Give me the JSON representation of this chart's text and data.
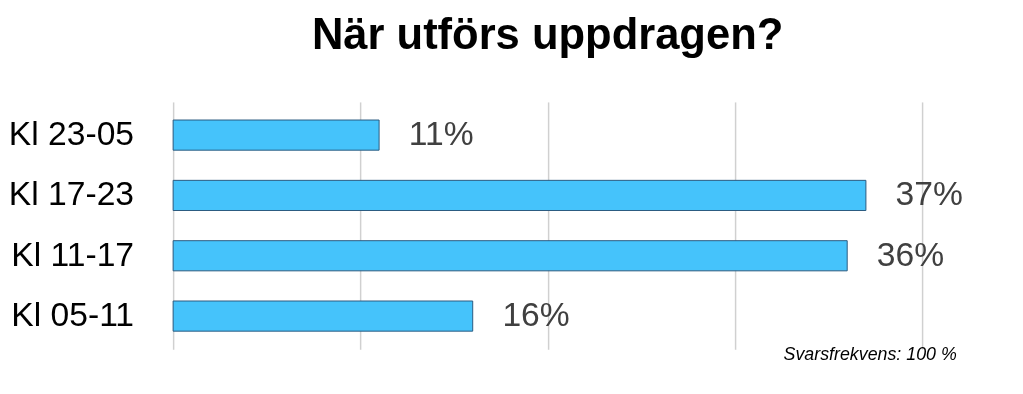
{
  "chart_data": {
    "type": "bar",
    "orientation": "horizontal",
    "title": "När utförs uppdragen?",
    "categories": [
      "Kl 23-05",
      "Kl 17-23",
      "Kl 11-17",
      "Kl 05-11"
    ],
    "values": [
      11,
      37,
      36,
      16
    ],
    "value_labels": [
      "11%",
      "37%",
      "36%",
      "16%"
    ],
    "color": "#45c3fb",
    "xlim": [
      0,
      40
    ],
    "xticks": [
      {
        "value": 0,
        "label": null
      },
      {
        "value": 10,
        "label": null
      },
      {
        "value": 20,
        "label": null
      },
      {
        "value": 30,
        "label": null
      },
      {
        "value": 40,
        "label": null
      }
    ],
    "grid": "x",
    "tick_labels": "y",
    "annotations": [
      "Svarsfrekvens: 100 %"
    ]
  }
}
